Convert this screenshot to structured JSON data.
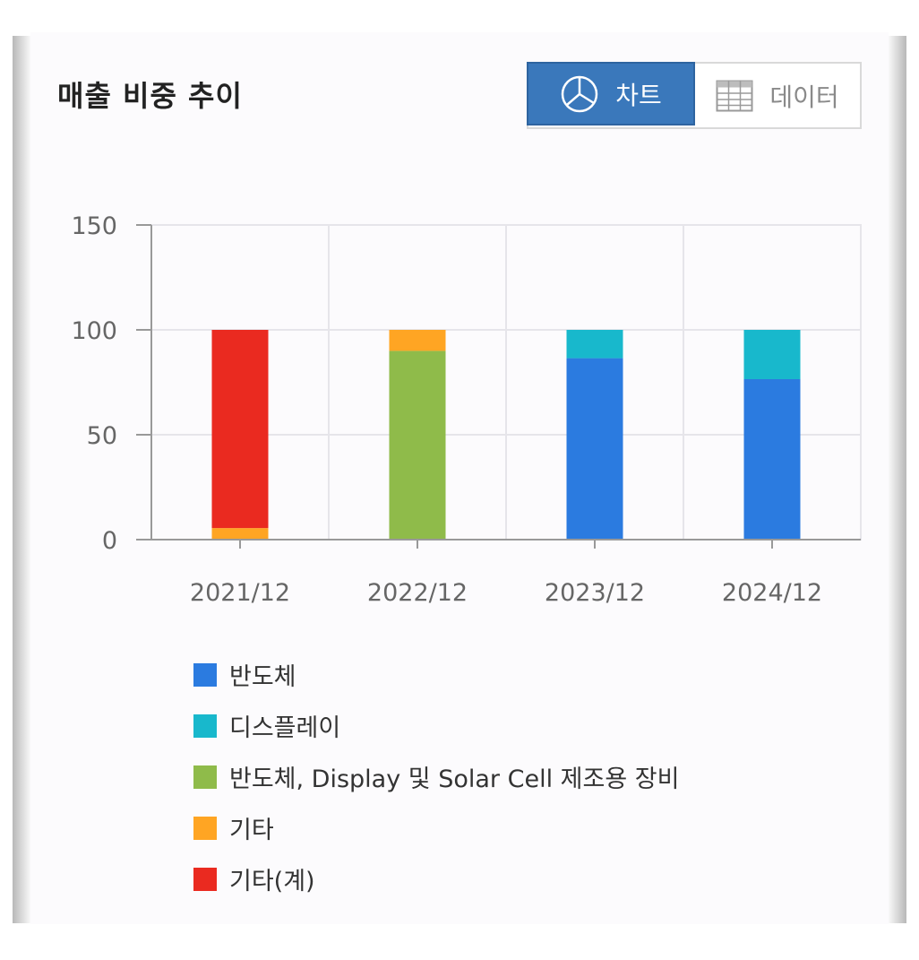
{
  "title": "매출 비중 추이",
  "toggle": {
    "chart_label": "차트",
    "data_label": "데이터",
    "active_color": "#3a78bb"
  },
  "chart_data": {
    "type": "bar",
    "stacked": true,
    "categories": [
      "2021/12",
      "2022/12",
      "2023/12",
      "2024/12"
    ],
    "ylim": [
      0,
      150
    ],
    "yticks": [
      0,
      50,
      100,
      150
    ],
    "grid": true,
    "legend_position": "bottom",
    "series": [
      {
        "name": "반도체",
        "color": "#2b7be0",
        "values": [
          0,
          0,
          86.5,
          76.5
        ]
      },
      {
        "name": "디스플레이",
        "color": "#18b8cc",
        "values": [
          0,
          0,
          13.5,
          23.5
        ]
      },
      {
        "name": "반도체, Display 및 Solar Cell 제조용 장비",
        "color": "#8fbb4a",
        "values": [
          0,
          90,
          0,
          0
        ]
      },
      {
        "name": "기타",
        "color": "#ffa523",
        "values": [
          5.5,
          10,
          0,
          0
        ]
      },
      {
        "name": "기타(계)",
        "color": "#ea2a20",
        "values": [
          94.5,
          0,
          0,
          0
        ]
      }
    ]
  }
}
